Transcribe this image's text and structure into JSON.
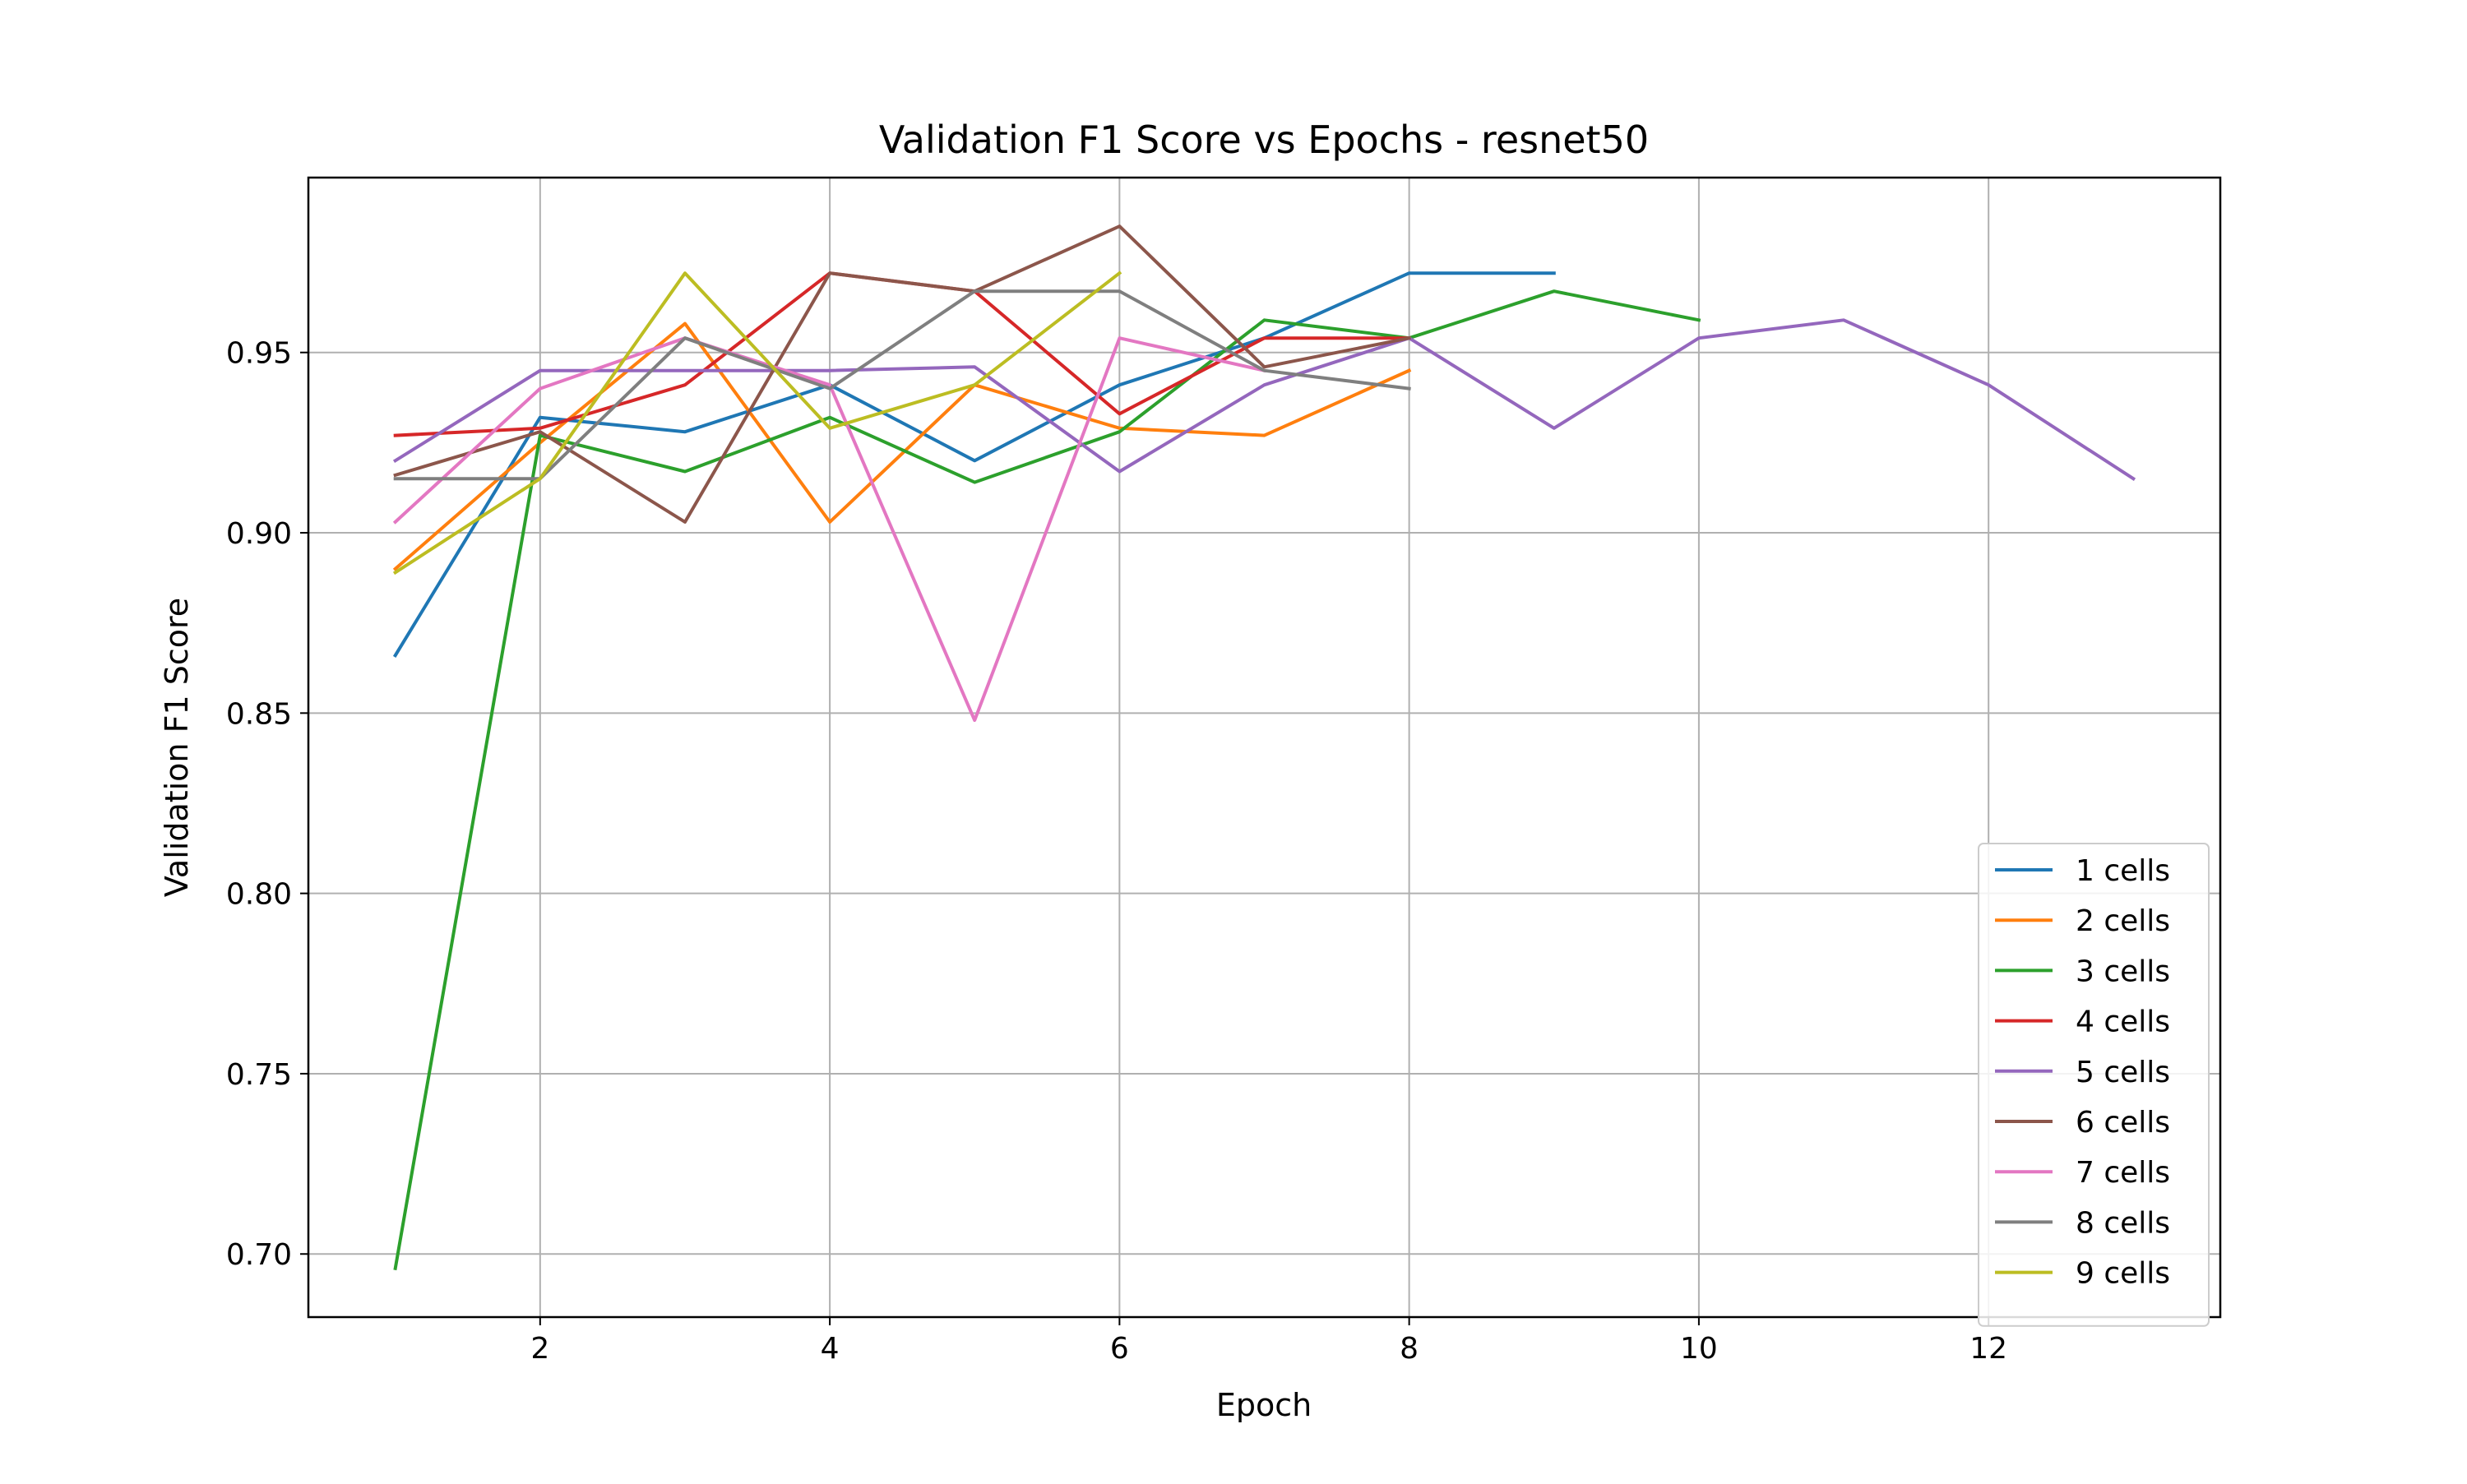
{
  "chart_data": {
    "type": "line",
    "title": "Validation F1 Score vs Epochs - resnet50",
    "xlabel": "Epoch",
    "ylabel": "Validation F1 Score",
    "xlim": [
      0.4,
      13.6
    ],
    "ylim": [
      0.6825,
      0.9985
    ],
    "xticks": [
      2,
      4,
      6,
      8,
      10,
      12
    ],
    "xtick_labels": [
      "2",
      "4",
      "6",
      "8",
      "10",
      "12"
    ],
    "yticks": [
      0.7,
      0.75,
      0.8,
      0.85,
      0.9,
      0.95
    ],
    "ytick_labels": [
      "0.70",
      "0.75",
      "0.80",
      "0.85",
      "0.90",
      "0.95"
    ],
    "grid": true,
    "legend_position": "lower-right",
    "series": [
      {
        "name": "1 cells",
        "color": "#1f77b4",
        "x": [
          1,
          2,
          3,
          4,
          5,
          6,
          7,
          8,
          9
        ],
        "values": [
          0.866,
          0.932,
          0.928,
          0.941,
          0.92,
          0.941,
          0.954,
          0.972,
          0.972
        ]
      },
      {
        "name": "2 cells",
        "color": "#ff7f0e",
        "x": [
          1,
          2,
          3,
          4,
          5,
          6,
          7,
          8
        ],
        "values": [
          0.89,
          0.925,
          0.958,
          0.903,
          0.941,
          0.929,
          0.927,
          0.945
        ]
      },
      {
        "name": "3 cells",
        "color": "#2ca02c",
        "x": [
          1,
          2,
          3,
          4,
          5,
          6,
          7,
          8,
          9,
          10
        ],
        "values": [
          0.696,
          0.927,
          0.917,
          0.932,
          0.914,
          0.928,
          0.959,
          0.954,
          0.967,
          0.959
        ]
      },
      {
        "name": "4 cells",
        "color": "#d62728",
        "x": [
          1,
          2,
          3,
          4,
          5,
          6,
          7,
          8
        ],
        "values": [
          0.927,
          0.929,
          0.941,
          0.972,
          0.967,
          0.933,
          0.954,
          0.954
        ]
      },
      {
        "name": "5 cells",
        "color": "#9467bd",
        "x": [
          1,
          2,
          3,
          4,
          5,
          6,
          7,
          8,
          9,
          10,
          11,
          12,
          13
        ],
        "values": [
          0.92,
          0.945,
          0.945,
          0.945,
          0.946,
          0.917,
          0.941,
          0.954,
          0.929,
          0.954,
          0.959,
          0.941,
          0.915
        ]
      },
      {
        "name": "6 cells",
        "color": "#8c564b",
        "x": [
          1,
          2,
          3,
          4,
          5,
          6,
          7,
          8
        ],
        "values": [
          0.916,
          0.928,
          0.903,
          0.972,
          0.967,
          0.985,
          0.946,
          0.954
        ]
      },
      {
        "name": "7 cells",
        "color": "#e377c2",
        "x": [
          1,
          2,
          3,
          4,
          5,
          6,
          7
        ],
        "values": [
          0.903,
          0.94,
          0.954,
          0.941,
          0.848,
          0.954,
          0.945
        ]
      },
      {
        "name": "8 cells",
        "color": "#7f7f7f",
        "x": [
          1,
          2,
          3,
          4,
          5,
          6,
          7,
          8
        ],
        "values": [
          0.915,
          0.915,
          0.954,
          0.94,
          0.967,
          0.967,
          0.945,
          0.94
        ]
      },
      {
        "name": "9 cells",
        "color": "#bcbd22",
        "x": [
          1,
          2,
          3,
          4,
          5,
          6
        ],
        "values": [
          0.889,
          0.915,
          0.972,
          0.929,
          0.941,
          0.972
        ]
      }
    ]
  }
}
